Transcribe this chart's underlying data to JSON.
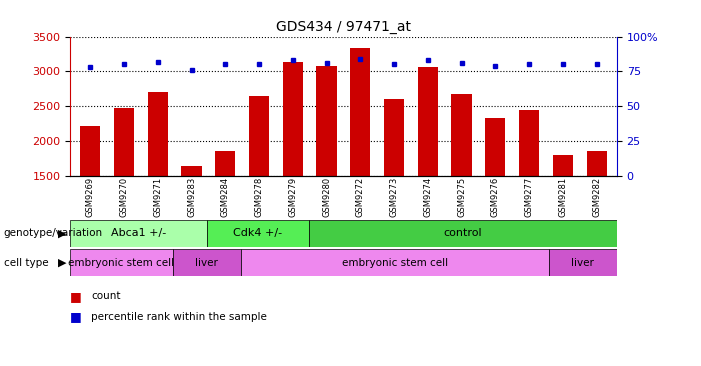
{
  "title": "GDS434 / 97471_at",
  "samples": [
    "GSM9269",
    "GSM9270",
    "GSM9271",
    "GSM9283",
    "GSM9284",
    "GSM9278",
    "GSM9279",
    "GSM9280",
    "GSM9272",
    "GSM9273",
    "GSM9274",
    "GSM9275",
    "GSM9276",
    "GSM9277",
    "GSM9281",
    "GSM9282"
  ],
  "counts": [
    2220,
    2480,
    2700,
    1640,
    1860,
    2650,
    3130,
    3080,
    3330,
    2600,
    3060,
    2670,
    2330,
    2440,
    1800,
    1860
  ],
  "percentile_ranks": [
    78,
    80,
    82,
    76,
    80,
    80,
    83,
    81,
    84,
    80,
    83,
    81,
    79,
    80,
    80,
    80
  ],
  "ylim_left": [
    1500,
    3500
  ],
  "ylim_right": [
    0,
    100
  ],
  "yticks_left": [
    1500,
    2000,
    2500,
    3000,
    3500
  ],
  "yticks_right": [
    0,
    25,
    50,
    75,
    100
  ],
  "bar_color": "#cc0000",
  "dot_color": "#0000cc",
  "genotype_groups": [
    {
      "label": "Abca1 +/-",
      "start": 0,
      "end": 4,
      "color": "#aaffaa"
    },
    {
      "label": "Cdk4 +/-",
      "start": 4,
      "end": 7,
      "color": "#55ee55"
    },
    {
      "label": "control",
      "start": 7,
      "end": 16,
      "color": "#44cc44"
    }
  ],
  "celltype_groups": [
    {
      "label": "embryonic stem cell",
      "start": 0,
      "end": 3,
      "color": "#ee88ee"
    },
    {
      "label": "liver",
      "start": 3,
      "end": 5,
      "color": "#cc55cc"
    },
    {
      "label": "embryonic stem cell",
      "start": 5,
      "end": 14,
      "color": "#ee88ee"
    },
    {
      "label": "liver",
      "start": 14,
      "end": 16,
      "color": "#cc55cc"
    }
  ],
  "left_axis_color": "#cc0000",
  "right_axis_color": "#0000cc"
}
